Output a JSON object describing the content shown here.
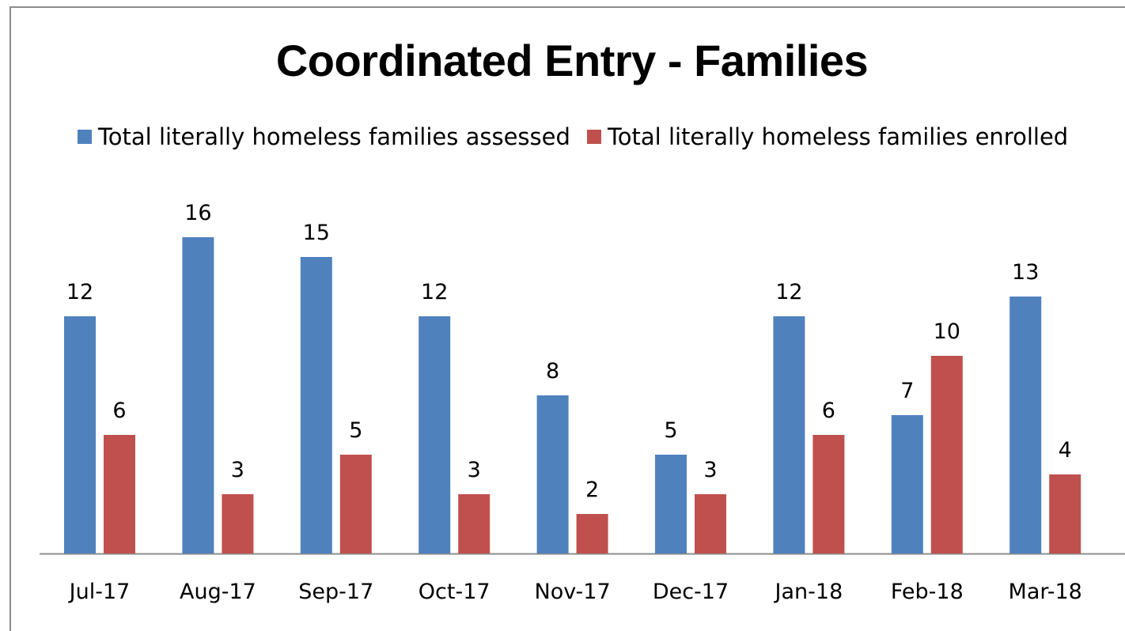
{
  "chart_data": {
    "type": "bar",
    "title": "Coordinated Entry - Families",
    "xlabel": "",
    "ylabel": "",
    "categories": [
      "Jul-17",
      "Aug-17",
      "Sep-17",
      "Oct-17",
      "Nov-17",
      "Dec-17",
      "Jan-18",
      "Feb-18",
      "Mar-18"
    ],
    "series": [
      {
        "name": "Total literally homeless families assessed",
        "color": "#4f81bd",
        "values": [
          12,
          16,
          15,
          12,
          8,
          5,
          12,
          7,
          13
        ]
      },
      {
        "name": "Total literally homeless families enrolled",
        "color": "#c0504d",
        "values": [
          6,
          3,
          5,
          3,
          2,
          3,
          6,
          10,
          4
        ]
      }
    ],
    "ylim": [
      0,
      16
    ],
    "grid": false,
    "legend_position": "top",
    "data_labels": true
  }
}
